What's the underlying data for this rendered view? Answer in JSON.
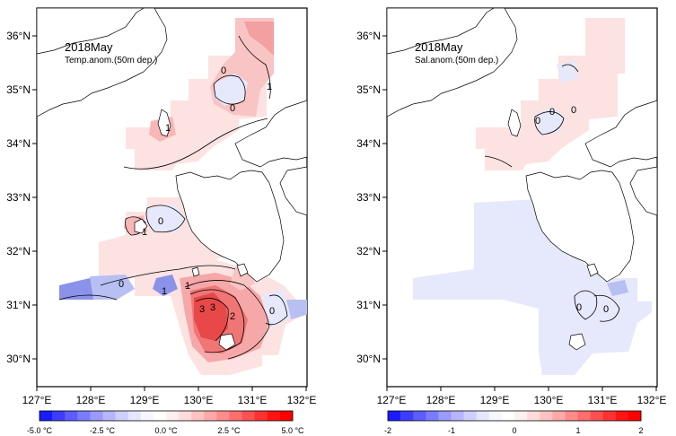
{
  "panels": [
    {
      "id": "temp",
      "title": "2018May",
      "subtitle": "Temp.anom.(50m dep.)",
      "contour_labels": [
        "0",
        "0",
        "1",
        "1",
        "1",
        "0",
        "1",
        "0",
        "3",
        "2",
        "3",
        "0",
        "1"
      ],
      "colorbar_labels": [
        "-5.0 °C",
        "-2.5 °C",
        "0.0 °C",
        "2.5 °C",
        "5.0 °C"
      ],
      "colorbar_colors": [
        "#1a1aff",
        "#3d3dff",
        "#5c5cff",
        "#7b7bff",
        "#9a9aff",
        "#b6b6ff",
        "#cfcfff",
        "#e6e6ff",
        "#f6f6ff",
        "#ffffff",
        "#fff0f0",
        "#ffdcdc",
        "#ffc3c3",
        "#ffa8a8",
        "#ff8c8c",
        "#ff6e6e",
        "#ff5050",
        "#ff3232",
        "#ff1414",
        "#ff0000"
      ]
    },
    {
      "id": "sal",
      "title": "2018May",
      "subtitle": "Sal.anom.(50m dep.)",
      "contour_labels": [
        "0",
        "0",
        "0",
        "0",
        "0"
      ],
      "colorbar_labels": [
        "-2",
        "-1",
        "0",
        "1",
        "2"
      ],
      "colorbar_colors": [
        "#1a1aff",
        "#3d3dff",
        "#5c5cff",
        "#7b7bff",
        "#9a9aff",
        "#b6b6ff",
        "#cfcfff",
        "#e6e6ff",
        "#f6f6ff",
        "#ffffff",
        "#fff0f0",
        "#ffdcdc",
        "#ffc3c3",
        "#ffa8a8",
        "#ff8c8c",
        "#ff6e6e",
        "#ff5050",
        "#ff3232",
        "#ff1414",
        "#ff0000"
      ]
    }
  ],
  "axes": {
    "x_ticks": [
      "127°E",
      "128°E",
      "129°E",
      "130°E",
      "131°E",
      "132°E"
    ],
    "y_ticks": [
      "36°N",
      "35°N",
      "34°N",
      "33°N",
      "32°N",
      "31°N",
      "30°N"
    ]
  },
  "colors": {
    "ocean": "#ffffff",
    "coast": "#000000",
    "warm_light": "#fde2e2",
    "warm_mid": "#f9b6b6",
    "warm_strong": "#f27474",
    "warm_max": "#e84848",
    "cool_light": "#e6e8fb",
    "cool_mid": "#b8bff2",
    "cool_strong": "#8a92ea"
  }
}
